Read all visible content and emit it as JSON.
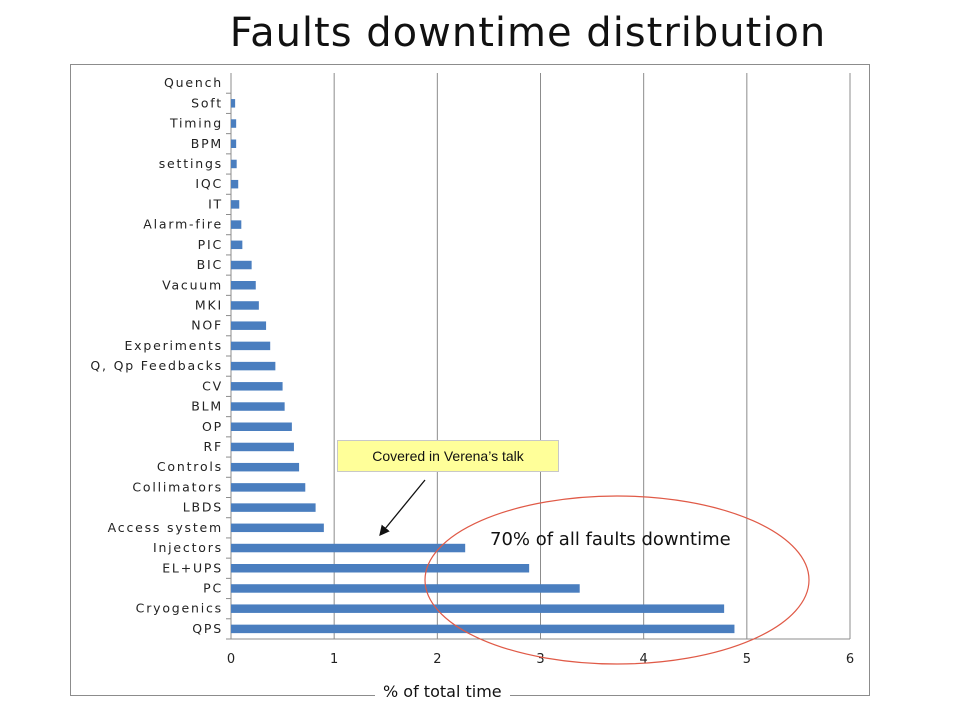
{
  "page": {
    "title": "Faults downtime distribution",
    "callout": "Covered in Verena’s talk",
    "highlight_note": "70% of all faults downtime"
  },
  "colors": {
    "bar": "#4a7ebf",
    "ellipse": "#e05a47",
    "callout_bg": "#ffff99",
    "grid": "#8c8c8c"
  },
  "chart_data": {
    "type": "bar",
    "orientation": "horizontal",
    "title": "",
    "xlabel": "% of total time",
    "ylabel": "",
    "xlim": [
      0,
      6
    ],
    "xticks": [
      "0",
      "1",
      "2",
      "3",
      "4",
      "5",
      "6"
    ],
    "grid": "vertical",
    "legend": "none",
    "categories": [
      "QPS",
      "Cryogenics",
      "PC",
      "EL+UPS",
      "Injectors",
      "Access system",
      "LBDS",
      "Collimators",
      "Controls",
      "RF",
      "OP",
      "BLM",
      "CV",
      "Q, Qp Feedbacks",
      "Experiments",
      "NOF",
      "MKI",
      "Vacuum",
      "BIC",
      "PIC",
      "Alarm-fire",
      "IT",
      "IQC",
      "settings",
      "BPM",
      "Timing",
      "Soft",
      "Quench"
    ],
    "values": [
      4.88,
      4.78,
      3.38,
      2.89,
      2.27,
      0.9,
      0.82,
      0.72,
      0.66,
      0.61,
      0.59,
      0.52,
      0.5,
      0.43,
      0.38,
      0.34,
      0.27,
      0.24,
      0.2,
      0.11,
      0.1,
      0.08,
      0.07,
      0.055,
      0.05,
      0.05,
      0.04,
      0.0
    ]
  }
}
